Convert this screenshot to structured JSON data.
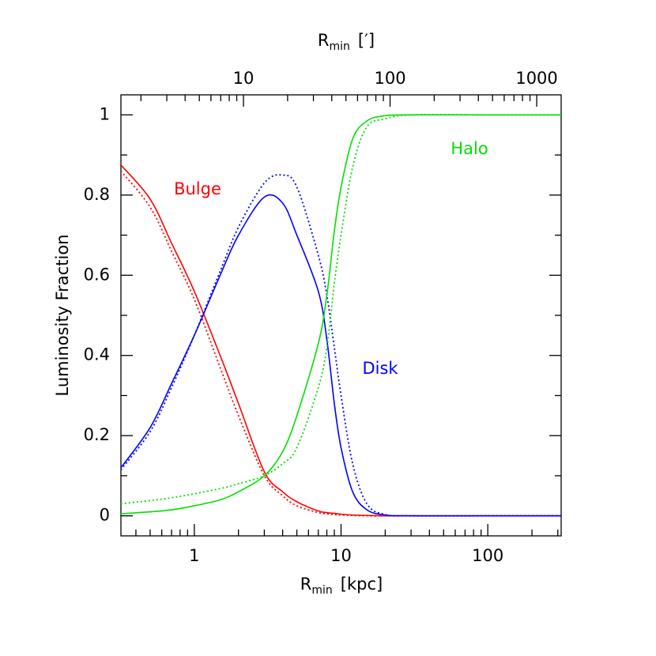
{
  "chart_data": {
    "type": "line",
    "xlabel": {
      "main": "R",
      "sub": "min",
      "rest": "[kpc]"
    },
    "x2label": {
      "main": "R",
      "sub": "min",
      "rest": "[′]"
    },
    "ylabel": "Luminosity Fraction",
    "xscale": "log",
    "x": [
      0.316,
      0.5,
      0.7,
      1,
      1.5,
      2,
      3,
      4,
      5,
      7,
      8,
      9,
      10,
      12,
      15,
      20,
      30,
      100,
      316
    ],
    "series": [
      {
        "name": "Bulge",
        "color": "#ff0000",
        "dash": "solid",
        "values": [
          0.875,
          0.79,
          0.68,
          0.56,
          0.4,
          0.28,
          0.11,
          0.06,
          0.035,
          0.012,
          0.008,
          0.006,
          0.004,
          0.002,
          0.001,
          0,
          0,
          0,
          0
        ]
      },
      {
        "name": "Bulge",
        "color": "#ff0000",
        "dash": "dotted",
        "values": [
          0.86,
          0.77,
          0.66,
          0.54,
          0.37,
          0.25,
          0.1,
          0.05,
          0.025,
          0.008,
          0.005,
          0.003,
          0.002,
          0.001,
          0,
          0,
          0,
          0,
          0
        ]
      },
      {
        "name": "Disk",
        "color": "#0000ff",
        "dash": "solid",
        "values": [
          0.12,
          0.22,
          0.33,
          0.45,
          0.6,
          0.7,
          0.795,
          0.78,
          0.7,
          0.56,
          0.44,
          0.28,
          0.17,
          0.06,
          0.015,
          0.002,
          0,
          0,
          0
        ]
      },
      {
        "name": "Disk",
        "color": "#0000ff",
        "dash": "dotted",
        "values": [
          0.115,
          0.21,
          0.32,
          0.45,
          0.61,
          0.72,
          0.83,
          0.85,
          0.82,
          0.65,
          0.55,
          0.42,
          0.3,
          0.13,
          0.03,
          0.003,
          0,
          0,
          0
        ]
      },
      {
        "name": "Halo",
        "color": "#00e000",
        "dash": "solid",
        "values": [
          0.005,
          0.01,
          0.015,
          0.025,
          0.04,
          0.06,
          0.1,
          0.16,
          0.25,
          0.43,
          0.55,
          0.71,
          0.82,
          0.94,
          0.985,
          0.998,
          1,
          1,
          1
        ]
      },
      {
        "name": "Halo",
        "color": "#00e000",
        "dash": "dotted",
        "values": [
          0.03,
          0.038,
          0.045,
          0.055,
          0.068,
          0.08,
          0.1,
          0.13,
          0.17,
          0.32,
          0.42,
          0.58,
          0.7,
          0.87,
          0.97,
          0.99,
          1,
          1,
          1
        ]
      }
    ],
    "annotations": [
      {
        "text": "Bulge",
        "color": "#ff0000"
      },
      {
        "text": "Disk",
        "color": "#0000ff"
      },
      {
        "text": "Halo",
        "color": "#00e000"
      }
    ],
    "xlim": [
      0.3162,
      316.2
    ],
    "xticks": [
      1,
      10,
      100
    ],
    "xminorticks": [
      0.4,
      0.5,
      0.6,
      0.7,
      0.8,
      0.9,
      2,
      3,
      4,
      5,
      6,
      7,
      8,
      9,
      20,
      30,
      40,
      50,
      60,
      70,
      80,
      90,
      200,
      300
    ],
    "x2lim": [
      1.46,
      1468
    ],
    "x2ticks": [
      10,
      100,
      1000
    ],
    "x2minorticks": [
      2,
      3,
      4,
      5,
      6,
      7,
      8,
      9,
      20,
      30,
      40,
      50,
      60,
      70,
      80,
      90,
      200,
      300,
      400,
      500,
      600,
      700,
      800,
      900
    ],
    "ylim": [
      -0.05,
      1.05
    ],
    "yticks": [
      0,
      0.2,
      0.4,
      0.6,
      0.8,
      1
    ],
    "yminorticks": [
      0.1,
      0.3,
      0.5,
      0.7,
      0.9
    ]
  }
}
